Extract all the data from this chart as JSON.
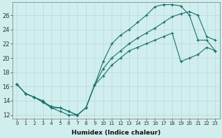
{
  "xlabel": "Humidex (Indice chaleur)",
  "bg_color": "#d0eeee",
  "grid_color": "#b8d8d8",
  "line_color": "#1a7068",
  "x_ticks": [
    0,
    1,
    2,
    3,
    4,
    5,
    6,
    7,
    8,
    9,
    10,
    11,
    12,
    13,
    14,
    15,
    16,
    17,
    18,
    19,
    20,
    21,
    22,
    23
  ],
  "y_ticks": [
    12,
    14,
    16,
    18,
    20,
    22,
    24,
    26
  ],
  "ylim": [
    11.5,
    27.8
  ],
  "xlim": [
    -0.5,
    23.5
  ],
  "line1_x": [
    0,
    1,
    2,
    3,
    4,
    5,
    6,
    7,
    8,
    9,
    10,
    11,
    12,
    13,
    14,
    15,
    16,
    17,
    18,
    19,
    20,
    21,
    22,
    23
  ],
  "line1_y": [
    16.3,
    15.0,
    14.5,
    13.8,
    13.0,
    13.0,
    12.5,
    12.0,
    13.0,
    16.2,
    19.5,
    22.0,
    23.2,
    24.0,
    25.0,
    26.0,
    27.2,
    27.5,
    27.5,
    27.3,
    26.0,
    22.5,
    22.5,
    21.0
  ],
  "line2_x": [
    0,
    1,
    2,
    3,
    4,
    5,
    6,
    7,
    8,
    9,
    10,
    11,
    12,
    13,
    14,
    15,
    16,
    17,
    18,
    19,
    20,
    21,
    22,
    23
  ],
  "line2_y": [
    16.3,
    15.0,
    14.5,
    13.8,
    13.2,
    13.0,
    12.5,
    12.0,
    13.0,
    16.2,
    18.5,
    20.0,
    21.0,
    22.0,
    22.8,
    23.5,
    24.2,
    25.0,
    25.8,
    26.2,
    26.5,
    26.0,
    23.0,
    22.5
  ],
  "line3_x": [
    0,
    1,
    2,
    3,
    4,
    5,
    6,
    7,
    8,
    9,
    10,
    11,
    12,
    13,
    14,
    15,
    16,
    17,
    18,
    19,
    20,
    21,
    22,
    23
  ],
  "line3_y": [
    16.3,
    15.0,
    14.5,
    14.0,
    13.0,
    12.5,
    12.0,
    12.0,
    13.0,
    16.2,
    17.5,
    19.0,
    20.0,
    21.0,
    21.5,
    22.0,
    22.5,
    23.0,
    23.5,
    19.5,
    20.0,
    20.5,
    21.5,
    21.0
  ]
}
